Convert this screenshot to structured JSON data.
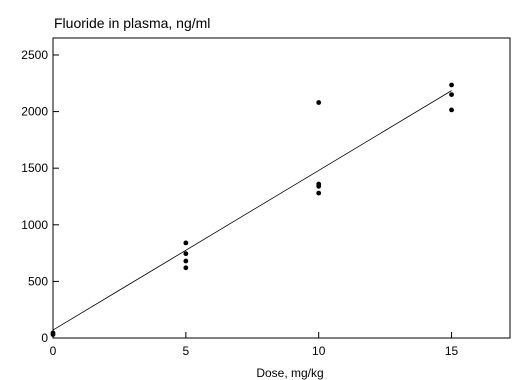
{
  "chart_data": {
    "type": "scatter",
    "title": "Fluoride in plasma, ng/ml",
    "xlabel": "Dose, mg/kg",
    "ylabel": "",
    "xlim": [
      0,
      17.2
    ],
    "ylim": [
      0,
      2650
    ],
    "xticks": [
      0,
      5,
      10,
      15
    ],
    "yticks": [
      0,
      500,
      1000,
      1500,
      2000,
      2500
    ],
    "grid": false,
    "series": [
      {
        "points": [
          {
            "x": 0,
            "y": 30
          },
          {
            "x": 0,
            "y": 45
          },
          {
            "x": 5,
            "y": 840
          },
          {
            "x": 5,
            "y": 745
          },
          {
            "x": 5,
            "y": 680
          },
          {
            "x": 5,
            "y": 620
          },
          {
            "x": 10,
            "y": 2080
          },
          {
            "x": 10,
            "y": 1360
          },
          {
            "x": 10,
            "y": 1340
          },
          {
            "x": 10,
            "y": 1280
          },
          {
            "x": 15,
            "y": 2235
          },
          {
            "x": 15,
            "y": 2150
          },
          {
            "x": 15,
            "y": 2015
          }
        ]
      }
    ],
    "fit_line": {
      "x": [
        0,
        15
      ],
      "y": [
        70,
        2185
      ]
    }
  }
}
